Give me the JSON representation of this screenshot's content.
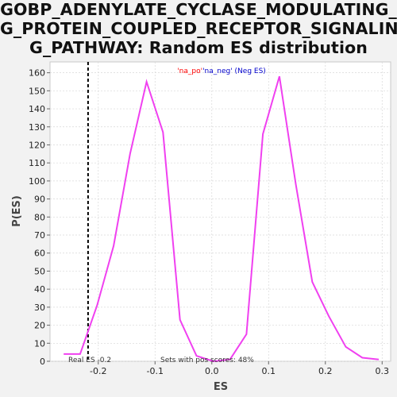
{
  "title_lines": [
    "GOBP_ADENYLATE_CYCLASE_MODULATING_",
    "G_PROTEIN_COUPLED_RECEPTOR_SIGNALIN",
    "G_PATHWAY: Random ES distribution"
  ],
  "legend": {
    "pos_label": "'na_po'",
    "neg_label": "'na_neg'",
    "suffix": " (Neg ES)"
  },
  "annotations": {
    "real_es": "Real ES -0.2",
    "pos_scores": "Sets with pos scores: 48%"
  },
  "colors": {
    "line": "#f040f0",
    "pos": "#ff0000",
    "neg": "#0000cc",
    "plot_bg": "#ffffff",
    "grid": "#d8d8d8"
  },
  "chart_data": {
    "type": "line",
    "title": "GOBP_ADENYLATE_CYCLASE_MODULATING_G_PROTEIN_COUPLED_RECEPTOR_SIGNALING_PATHWAY: Random ES distribution",
    "xlabel": "ES",
    "ylabel": "P(ES)",
    "xlim": [
      -0.285,
      0.315
    ],
    "ylim": [
      0,
      166
    ],
    "xticks": [
      -0.2,
      -0.1,
      0.0,
      0.1,
      0.2,
      0.3
    ],
    "xtick_labels": [
      "-0.2",
      "-0.1",
      "0.0",
      "0.1",
      "0.2",
      "0.3"
    ],
    "yticks": [
      0,
      10,
      20,
      30,
      40,
      50,
      60,
      70,
      80,
      90,
      100,
      110,
      120,
      130,
      140,
      150,
      160
    ],
    "grid": true,
    "real_es": -0.218,
    "series": [
      {
        "name": "Neg ES",
        "x": [
          -0.261,
          -0.232,
          -0.202,
          -0.173,
          -0.144,
          -0.115,
          -0.086,
          -0.056,
          -0.027,
          0.003,
          0.032,
          0.061,
          0.09,
          0.119,
          0.148,
          0.177,
          0.206,
          0.236,
          0.265,
          0.294
        ],
        "y": [
          4,
          4,
          31,
          64,
          115,
          155,
          127,
          23,
          3,
          0,
          1,
          15,
          126,
          158,
          98,
          44,
          25,
          8,
          2,
          1
        ]
      }
    ]
  }
}
